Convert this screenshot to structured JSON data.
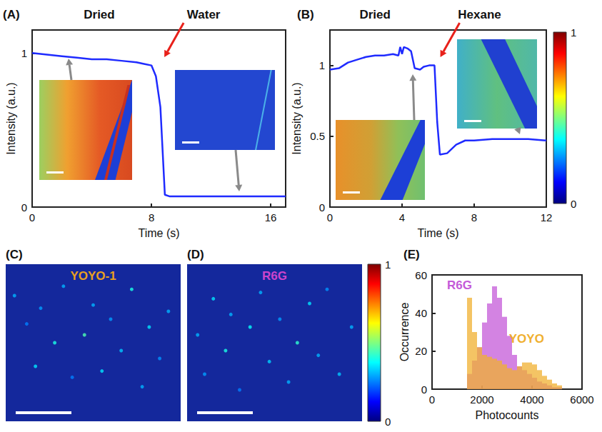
{
  "chart_data": [
    {
      "panel": "(A)",
      "type": "line",
      "color": "#1f2bff",
      "x_label": "Time (s)",
      "y_label": "Intensity (a.u.)",
      "annotations": [
        {
          "text": "Dried",
          "x": 4.5
        },
        {
          "text": "Water",
          "x": 11.5
        }
      ],
      "x": [
        0,
        1,
        2,
        3,
        4,
        5,
        6,
        7,
        7.5,
        8,
        8.3,
        8.6,
        8.9,
        9.2,
        10,
        11,
        12,
        13,
        14,
        15,
        16,
        17
      ],
      "values": [
        1,
        0.99,
        0.98,
        0.97,
        0.96,
        0.96,
        0.95,
        0.94,
        0.93,
        0.92,
        0.85,
        0.65,
        0.08,
        0.07,
        0.07,
        0.07,
        0.07,
        0.07,
        0.07,
        0.07,
        0.07,
        0.07
      ],
      "xlim": [
        0,
        17
      ],
      "xticks": [
        0,
        8,
        16
      ],
      "ylim": [
        0,
        1.15
      ],
      "yticks": [
        0,
        1
      ],
      "grid": false
    },
    {
      "panel": "(B)",
      "type": "line",
      "color": "#1f2bff",
      "x_label": "Time (s)",
      "y_label": "Intensity (a.u.)",
      "annotations": [
        {
          "text": "Dried",
          "x": 2.5
        },
        {
          "text": "Hexane",
          "x": 8.3
        }
      ],
      "x": [
        0,
        0.5,
        1,
        1.5,
        2,
        2.5,
        3,
        3.5,
        3.8,
        3.9,
        4,
        4.1,
        4.3,
        4.5,
        4.7,
        5,
        5.2,
        5.5,
        5.8,
        5.95,
        6.1,
        6.5,
        7,
        7.5,
        8,
        9,
        10,
        11,
        12
      ],
      "values": [
        0.97,
        0.98,
        1.02,
        1.04,
        1.06,
        1.07,
        1.07,
        1.08,
        1.07,
        1.13,
        1.08,
        1.13,
        1.12,
        1.1,
        0.98,
        0.97,
        0.99,
        1.0,
        1.0,
        0.6,
        0.37,
        0.38,
        0.44,
        0.47,
        0.47,
        0.48,
        0.48,
        0.48,
        0.47
      ],
      "xlim": [
        0,
        12
      ],
      "xticks": [
        0,
        4,
        8,
        12
      ],
      "ylim": [
        0,
        1.25
      ],
      "yticks": [
        0,
        0.5,
        1
      ],
      "grid": false,
      "colorbar": {
        "range": [
          0,
          1
        ],
        "ticks": [
          0,
          1
        ]
      }
    },
    {
      "panel": "(C)",
      "type": "scatter",
      "title": "YOYO-1",
      "color": "#e8a020",
      "tick_labels": false,
      "x": [
        0.05,
        0.12,
        0.17,
        0.2,
        0.28,
        0.33,
        0.38,
        0.45,
        0.5,
        0.55,
        0.6,
        0.66,
        0.72,
        0.78,
        0.82,
        0.88,
        0.93
      ],
      "values": [
        0.8,
        0.62,
        0.35,
        0.72,
        0.5,
        0.86,
        0.28,
        0.55,
        0.74,
        0.32,
        0.65,
        0.45,
        0.84,
        0.22,
        0.6,
        0.4,
        0.7
      ],
      "intensity": [
        0.3,
        0.25,
        0.35,
        0.28,
        0.4,
        0.3,
        0.25,
        0.45,
        0.3,
        0.35,
        0.28,
        0.32,
        0.4,
        0.3,
        0.35,
        0.27,
        0.3
      ],
      "xlim": [
        0,
        1
      ],
      "ylim": [
        0,
        1
      ]
    },
    {
      "panel": "(D)",
      "type": "scatter",
      "title": "R6G",
      "color": "#cc44cc",
      "tick_labels": false,
      "x": [
        0.06,
        0.1,
        0.15,
        0.22,
        0.25,
        0.3,
        0.36,
        0.42,
        0.47,
        0.53,
        0.58,
        0.63,
        0.7,
        0.75,
        0.8,
        0.87,
        0.94
      ],
      "values": [
        0.55,
        0.3,
        0.78,
        0.45,
        0.68,
        0.2,
        0.6,
        0.82,
        0.38,
        0.65,
        0.25,
        0.5,
        0.75,
        0.42,
        0.84,
        0.3,
        0.6
      ],
      "intensity": [
        0.3,
        0.28,
        0.35,
        0.4,
        0.3,
        0.25,
        0.38,
        0.3,
        0.33,
        0.28,
        0.3,
        0.42,
        0.35,
        0.3,
        0.27,
        0.32,
        0.3
      ],
      "xlim": [
        0,
        1
      ],
      "ylim": [
        0,
        1
      ],
      "colorbar": {
        "range": [
          0,
          1
        ],
        "ticks": [
          0,
          1
        ]
      }
    },
    {
      "panel": "(E)",
      "type": "histogram",
      "x_label": "Photocounts",
      "y_label": "Occurrence",
      "bins": [
        1400,
        1600,
        1800,
        2000,
        2200,
        2400,
        2600,
        2800,
        3000,
        3200,
        3400,
        3600,
        3800,
        4000,
        4200,
        4400,
        4600,
        4800,
        5000,
        5200
      ],
      "series": [
        {
          "name": "R6G",
          "color": "#c45ad8",
          "values": [
            8,
            15,
            22,
            35,
            45,
            54,
            48,
            38,
            28,
            18,
            12,
            10,
            8,
            6,
            4,
            3,
            2,
            1,
            1
          ]
        },
        {
          "name": "YOYO",
          "color": "#f0b030",
          "values": [
            48,
            30,
            22,
            18,
            17,
            16,
            15,
            13,
            11,
            10,
            12,
            14,
            14,
            13,
            10,
            7,
            5,
            3,
            2
          ]
        }
      ],
      "xlim": [
        0,
        6000
      ],
      "xticks": [
        0,
        2000,
        4000,
        6000
      ],
      "ylim": [
        0,
        60
      ],
      "yticks": [
        0,
        20,
        40,
        60
      ],
      "grid": false
    }
  ]
}
